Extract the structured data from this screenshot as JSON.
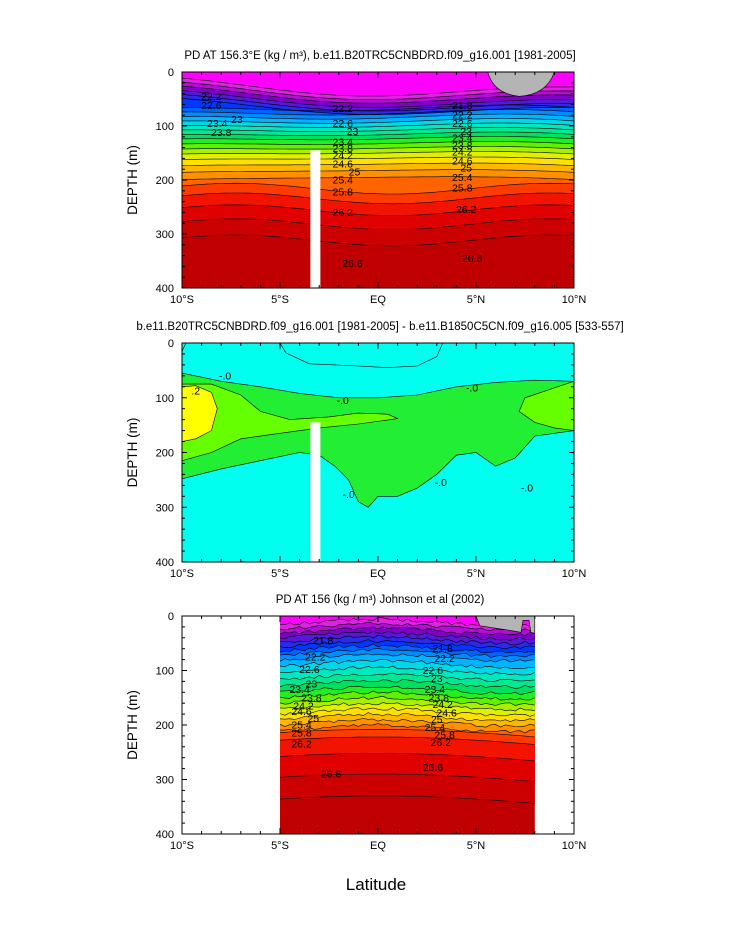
{
  "chart_data": [
    {
      "type": "heatmap",
      "title": "PD AT 156.3°E (kg / m³), b.e11.B20TRC5CNBDRD.f09_g16.001 [1981-2005]",
      "ylabel": "DEPTH (m)",
      "xlabel": "",
      "xlim": [
        -10,
        10
      ],
      "ylim": [
        400,
        0
      ],
      "xticks": [
        "10°S",
        "5°S",
        "EQ",
        "5°N",
        "10°N"
      ],
      "yticks": [
        "0",
        "100",
        "200",
        "300",
        "400"
      ],
      "contour_levels": [
        21.8,
        22.0,
        22.2,
        22.4,
        22.6,
        22.8,
        23.0,
        23.2,
        23.4,
        23.6,
        23.8,
        24.0,
        24.2,
        24.4,
        24.6,
        24.8,
        25.0,
        25.2,
        25.4,
        25.6,
        25.8,
        26.0,
        26.2,
        26.4,
        26.6,
        26.8
      ],
      "contour_depths_south": [
        28,
        35,
        42,
        50,
        57,
        64,
        72,
        80,
        88,
        96,
        104,
        112,
        120,
        128,
        137,
        146,
        155,
        165,
        176,
        188,
        201,
        216,
        234,
        256,
        282,
        312
      ],
      "contour_labels": [
        {
          "text": "22.2",
          "lat": -8.5,
          "depth": 45
        },
        {
          "text": "22.6",
          "lat": -8.5,
          "depth": 62
        },
        {
          "text": "23",
          "lat": -7.2,
          "depth": 88
        },
        {
          "text": "23.4",
          "lat": -8.2,
          "depth": 95
        },
        {
          "text": "23.8",
          "lat": -8.0,
          "depth": 112
        },
        {
          "text": "22.2",
          "lat": -1.8,
          "depth": 68
        },
        {
          "text": "22.6",
          "lat": -1.8,
          "depth": 95
        },
        {
          "text": "23",
          "lat": -1.3,
          "depth": 110
        },
        {
          "text": "23.4",
          "lat": -1.8,
          "depth": 130
        },
        {
          "text": "23.8",
          "lat": -1.8,
          "depth": 142
        },
        {
          "text": "24.2",
          "lat": -1.8,
          "depth": 155
        },
        {
          "text": "24.6",
          "lat": -1.8,
          "depth": 170
        },
        {
          "text": "25",
          "lat": -1.2,
          "depth": 185
        },
        {
          "text": "25.4",
          "lat": -1.8,
          "depth": 200
        },
        {
          "text": "25.8",
          "lat": -1.8,
          "depth": 222
        },
        {
          "text": "26.2",
          "lat": -1.8,
          "depth": 260
        },
        {
          "text": "26.6",
          "lat": -1.3,
          "depth": 355
        },
        {
          "text": "21.8",
          "lat": 4.3,
          "depth": 62
        },
        {
          "text": "22.2",
          "lat": 4.3,
          "depth": 80
        },
        {
          "text": "22.6",
          "lat": 4.3,
          "depth": 95
        },
        {
          "text": "23",
          "lat": 4.5,
          "depth": 110
        },
        {
          "text": "23.4",
          "lat": 4.3,
          "depth": 122
        },
        {
          "text": "23.8",
          "lat": 4.3,
          "depth": 136
        },
        {
          "text": "24.2",
          "lat": 4.3,
          "depth": 148
        },
        {
          "text": "24.6",
          "lat": 4.3,
          "depth": 165
        },
        {
          "text": "25",
          "lat": 4.5,
          "depth": 178
        },
        {
          "text": "25.4",
          "lat": 4.3,
          "depth": 195
        },
        {
          "text": "25.8",
          "lat": 4.3,
          "depth": 215
        },
        {
          "text": "26.2",
          "lat": 4.5,
          "depth": 255
        },
        {
          "text": "26.6",
          "lat": 4.8,
          "depth": 345
        }
      ],
      "missing_regions": [
        "white bar at 3.3°S below 145 m",
        "grey land patch 5.5°N–9°N at 0–50 m"
      ]
    },
    {
      "type": "heatmap",
      "title": "b.e11.B20TRC5CNBDRD.f09_g16.001 [1981-2005] - b.e11.B1850C5CN.f09_g16.005 [533-557]",
      "ylabel": "DEPTH (m)",
      "xlabel": "",
      "xlim": [
        -10,
        10
      ],
      "ylim": [
        400,
        0
      ],
      "xticks": [
        "10°S",
        "5°S",
        "EQ",
        "5°N",
        "10°N"
      ],
      "yticks": [
        "0",
        "100",
        "200",
        "300",
        "400"
      ],
      "contour_levels": [
        -0.2,
        0.0,
        0.2,
        0.4
      ],
      "contour_labels": [
        {
          "text": ".2",
          "lat": -9.3,
          "depth": 88
        },
        {
          "text": "-.0",
          "lat": -7.8,
          "depth": 60
        },
        {
          "text": "-.0",
          "lat": -1.8,
          "depth": 105
        },
        {
          "text": "-.0",
          "lat": 4.8,
          "depth": 82
        },
        {
          "text": "-.0",
          "lat": -1.5,
          "depth": 277
        },
        {
          "text": "-.0",
          "lat": 3.2,
          "depth": 255
        },
        {
          "text": "-.0",
          "lat": 7.6,
          "depth": 265
        }
      ],
      "missing_regions": [
        "white bar at 3.3°S below 145 m"
      ]
    },
    {
      "type": "heatmap",
      "title": "PD AT 156 (kg / m³) Johnson et al (2002)",
      "ylabel": "DEPTH (m)",
      "xlabel": "Latitude",
      "xlim": [
        -10,
        10
      ],
      "ylim": [
        400,
        0
      ],
      "data_lat_range": [
        -5,
        8
      ],
      "xticks": [
        "10°S",
        "5°S",
        "EQ",
        "5°N",
        "10°N"
      ],
      "yticks": [
        "0",
        "100",
        "200",
        "300",
        "400"
      ],
      "contour_labels": [
        {
          "text": "21.8",
          "lat": -2.8,
          "depth": 45
        },
        {
          "text": "22.2",
          "lat": -3.2,
          "depth": 75
        },
        {
          "text": "22.6",
          "lat": -3.5,
          "depth": 98
        },
        {
          "text": "23",
          "lat": -3.4,
          "depth": 125
        },
        {
          "text": "23.4",
          "lat": -4.0,
          "depth": 135
        },
        {
          "text": "23.8",
          "lat": -3.4,
          "depth": 150
        },
        {
          "text": "24.2",
          "lat": -3.8,
          "depth": 165
        },
        {
          "text": "24.6",
          "lat": -3.9,
          "depth": 175
        },
        {
          "text": "25",
          "lat": -3.3,
          "depth": 188
        },
        {
          "text": "25.4",
          "lat": -3.9,
          "depth": 200
        },
        {
          "text": "25.8",
          "lat": -3.9,
          "depth": 215
        },
        {
          "text": "26.2",
          "lat": -3.9,
          "depth": 235
        },
        {
          "text": "26.6",
          "lat": -2.4,
          "depth": 290
        },
        {
          "text": "21.8",
          "lat": 3.3,
          "depth": 60
        },
        {
          "text": "22.2",
          "lat": 3.4,
          "depth": 78
        },
        {
          "text": "22.6",
          "lat": 2.8,
          "depth": 100
        },
        {
          "text": "23",
          "lat": 3.0,
          "depth": 115
        },
        {
          "text": "23.4",
          "lat": 2.9,
          "depth": 135
        },
        {
          "text": "23.8",
          "lat": 3.1,
          "depth": 150
        },
        {
          "text": "24.2",
          "lat": 3.3,
          "depth": 162
        },
        {
          "text": "24.6",
          "lat": 3.5,
          "depth": 178
        },
        {
          "text": "25",
          "lat": 3.0,
          "depth": 190
        },
        {
          "text": "25.4",
          "lat": 2.9,
          "depth": 205
        },
        {
          "text": "25.8",
          "lat": 3.4,
          "depth": 218
        },
        {
          "text": "26.2",
          "lat": 3.2,
          "depth": 232
        },
        {
          "text": "26.6",
          "lat": 2.8,
          "depth": 278
        }
      ],
      "missing_regions": [
        "grey land patch 5°N–8°N at 0–35 m",
        "no data outside 5°S–8°N"
      ]
    }
  ],
  "figure_xlabel": "Latitude",
  "colors": {
    "density_scale": [
      "#ff00ff",
      "#dd22e0",
      "#b30dd6",
      "#8000c8",
      "#5518d8",
      "#2a2ae8",
      "#0038ff",
      "#0062ff",
      "#008cff",
      "#00b4ff",
      "#00d8e8",
      "#00e8c0",
      "#00e890",
      "#00e060",
      "#22ee22",
      "#60f000",
      "#a8f000",
      "#e0f000",
      "#ffe000",
      "#ffb800",
      "#ff9000",
      "#ff6400",
      "#ff3c00",
      "#f21400",
      "#e00000",
      "#cc0000",
      "#c00000"
    ],
    "difference_scale": [
      "#00ffee",
      "#22ee33",
      "#66ff00",
      "#ffff00"
    ],
    "land": "#b4b4b4"
  }
}
